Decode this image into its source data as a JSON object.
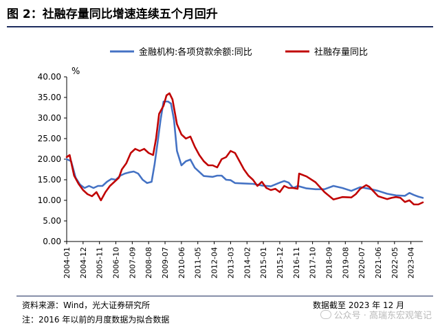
{
  "figure": {
    "title": "图 2：社融存量同比增速连续五个月回升",
    "source": "资料来源：Wind，光大证券研究所",
    "date_note": "数据截至 2023 年 12 月",
    "note": "注：2016 年以前的月度数据为拟合数据",
    "watermark": "公众号 · 高瑞东宏观笔记",
    "colors": {
      "loan_series": "#4472c4",
      "tsf_series": "#c00000",
      "title_rule": "#1b2a5c"
    }
  },
  "chart_data": {
    "type": "line",
    "title": "图 2：社融存量同比增速连续五个月回升",
    "ylabel": "%",
    "xlabel": "",
    "ylim": [
      0,
      40
    ],
    "yticks": [
      "0.00",
      "5.00",
      "10.00",
      "15.00",
      "20.00",
      "25.00",
      "30.00",
      "35.00",
      "40.00"
    ],
    "x_range": [
      "2004-01",
      "2023-12"
    ],
    "xticks": [
      "2004-01",
      "2004-12",
      "2005-11",
      "2006-10",
      "2007-09",
      "2008-08",
      "2009-07",
      "2010-06",
      "2011-05",
      "2012-04",
      "2013-03",
      "2014-02",
      "2015-01",
      "2015-12",
      "2016-11",
      "2017-10",
      "2018-09",
      "2019-08",
      "2020-07",
      "2021-06",
      "2022-05",
      "2023-04"
    ],
    "grid": false,
    "legend_position": "top",
    "series": [
      {
        "name": "金融机构:各项贷款余额:同比",
        "color": "#4472c4",
        "points": [
          [
            "2004-01",
            20.0
          ],
          [
            "2004-04",
            19.5
          ],
          [
            "2004-07",
            15.5
          ],
          [
            "2004-10",
            13.8
          ],
          [
            "2005-01",
            13.0
          ],
          [
            "2005-04",
            13.5
          ],
          [
            "2005-07",
            13.0
          ],
          [
            "2005-10",
            13.5
          ],
          [
            "2006-01",
            13.5
          ],
          [
            "2006-04",
            14.5
          ],
          [
            "2006-07",
            15.2
          ],
          [
            "2006-10",
            15.0
          ],
          [
            "2007-01",
            16.0
          ],
          [
            "2007-04",
            16.5
          ],
          [
            "2007-07",
            16.8
          ],
          [
            "2007-10",
            17.0
          ],
          [
            "2008-01",
            16.5
          ],
          [
            "2008-04",
            15.0
          ],
          [
            "2008-07",
            14.2
          ],
          [
            "2008-10",
            14.5
          ],
          [
            "2008-12",
            18.8
          ],
          [
            "2009-02",
            24.0
          ],
          [
            "2009-04",
            29.5
          ],
          [
            "2009-06",
            34.0
          ],
          [
            "2009-09",
            34.0
          ],
          [
            "2009-11",
            33.5
          ],
          [
            "2010-01",
            29.5
          ],
          [
            "2010-03",
            22.0
          ],
          [
            "2010-06",
            18.5
          ],
          [
            "2010-09",
            19.5
          ],
          [
            "2010-12",
            19.9
          ],
          [
            "2011-03",
            17.9
          ],
          [
            "2011-06",
            16.9
          ],
          [
            "2011-09",
            15.9
          ],
          [
            "2011-12",
            15.8
          ],
          [
            "2012-03",
            15.7
          ],
          [
            "2012-06",
            16.0
          ],
          [
            "2012-09",
            16.0
          ],
          [
            "2012-12",
            15.0
          ],
          [
            "2013-03",
            14.9
          ],
          [
            "2013-06",
            14.2
          ],
          [
            "2013-12",
            14.1
          ],
          [
            "2014-06",
            14.0
          ],
          [
            "2014-12",
            13.6
          ],
          [
            "2015-06",
            13.4
          ],
          [
            "2015-12",
            14.3
          ],
          [
            "2016-03",
            14.7
          ],
          [
            "2016-06",
            14.3
          ],
          [
            "2016-09",
            13.0
          ],
          [
            "2016-12",
            13.5
          ],
          [
            "2017-06",
            12.9
          ],
          [
            "2017-12",
            12.7
          ],
          [
            "2018-06",
            12.7
          ],
          [
            "2018-12",
            13.5
          ],
          [
            "2019-06",
            13.0
          ],
          [
            "2019-12",
            12.3
          ],
          [
            "2020-06",
            13.2
          ],
          [
            "2020-12",
            12.8
          ],
          [
            "2021-06",
            12.3
          ],
          [
            "2021-12",
            11.6
          ],
          [
            "2022-06",
            11.2
          ],
          [
            "2022-12",
            11.1
          ],
          [
            "2023-03",
            11.8
          ],
          [
            "2023-06",
            11.3
          ],
          [
            "2023-09",
            10.9
          ],
          [
            "2023-12",
            10.6
          ]
        ]
      },
      {
        "name": "社融存量同比",
        "color": "#c00000",
        "points": [
          [
            "2004-01",
            20.5
          ],
          [
            "2004-03",
            21.0
          ],
          [
            "2004-06",
            16.0
          ],
          [
            "2004-09",
            14.0
          ],
          [
            "2004-12",
            12.5
          ],
          [
            "2005-03",
            11.5
          ],
          [
            "2005-06",
            11.0
          ],
          [
            "2005-09",
            12.0
          ],
          [
            "2005-12",
            10.0
          ],
          [
            "2006-03",
            12.0
          ],
          [
            "2006-06",
            13.5
          ],
          [
            "2006-09",
            14.5
          ],
          [
            "2006-12",
            15.5
          ],
          [
            "2007-02",
            17.5
          ],
          [
            "2007-05",
            19.0
          ],
          [
            "2007-08",
            21.5
          ],
          [
            "2007-11",
            22.5
          ],
          [
            "2008-02",
            22.0
          ],
          [
            "2008-05",
            22.5
          ],
          [
            "2008-08",
            21.5
          ],
          [
            "2008-11",
            21.0
          ],
          [
            "2009-01",
            25.0
          ],
          [
            "2009-03",
            31.0
          ],
          [
            "2009-06",
            33.0
          ],
          [
            "2009-08",
            35.5
          ],
          [
            "2009-10",
            36.0
          ],
          [
            "2009-12",
            34.5
          ],
          [
            "2010-03",
            28.5
          ],
          [
            "2010-06",
            26.0
          ],
          [
            "2010-09",
            25.0
          ],
          [
            "2010-12",
            25.5
          ],
          [
            "2011-03",
            23.0
          ],
          [
            "2011-06",
            21.0
          ],
          [
            "2011-09",
            19.5
          ],
          [
            "2011-12",
            18.5
          ],
          [
            "2012-03",
            18.5
          ],
          [
            "2012-06",
            18.0
          ],
          [
            "2012-09",
            20.0
          ],
          [
            "2012-12",
            20.5
          ],
          [
            "2013-03",
            22.0
          ],
          [
            "2013-06",
            21.5
          ],
          [
            "2013-09",
            19.5
          ],
          [
            "2013-12",
            17.5
          ],
          [
            "2014-03",
            16.0
          ],
          [
            "2014-06",
            15.0
          ],
          [
            "2014-09",
            13.5
          ],
          [
            "2014-12",
            14.5
          ],
          [
            "2015-03",
            13.0
          ],
          [
            "2015-06",
            12.5
          ],
          [
            "2015-09",
            12.8
          ],
          [
            "2015-12",
            12.0
          ],
          [
            "2016-03",
            13.5
          ],
          [
            "2016-06",
            13.0
          ],
          [
            "2016-09",
            13.0
          ],
          [
            "2016-12",
            12.8
          ],
          [
            "2017-01",
            16.5
          ],
          [
            "2017-06",
            15.8
          ],
          [
            "2017-12",
            14.4
          ],
          [
            "2018-06",
            12.0
          ],
          [
            "2018-12",
            10.2
          ],
          [
            "2019-06",
            10.8
          ],
          [
            "2019-12",
            10.7
          ],
          [
            "2020-03",
            11.5
          ],
          [
            "2020-06",
            12.8
          ],
          [
            "2020-10",
            13.7
          ],
          [
            "2020-12",
            13.3
          ],
          [
            "2021-06",
            11.0
          ],
          [
            "2021-12",
            10.3
          ],
          [
            "2022-03",
            10.6
          ],
          [
            "2022-06",
            10.8
          ],
          [
            "2022-09",
            10.6
          ],
          [
            "2022-12",
            9.6
          ],
          [
            "2023-03",
            10.0
          ],
          [
            "2023-06",
            9.0
          ],
          [
            "2023-09",
            9.0
          ],
          [
            "2023-12",
            9.5
          ]
        ]
      }
    ]
  }
}
